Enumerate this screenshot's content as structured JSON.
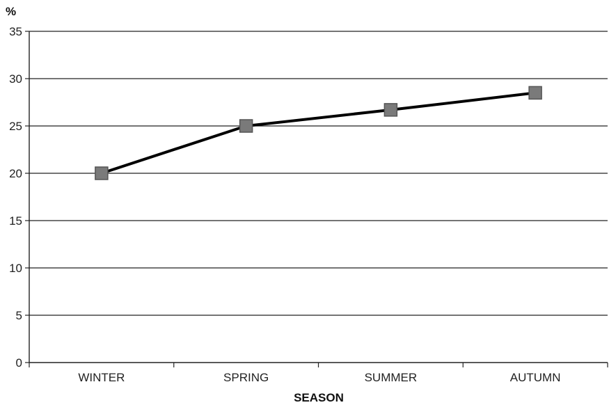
{
  "chart_data": {
    "type": "line",
    "title": "",
    "xlabel": "SEASON",
    "ylabel": "%",
    "categories": [
      "WINTER",
      "SPRING",
      "SUMMER",
      "AUTUMN"
    ],
    "series": [
      {
        "values": [
          20,
          25,
          26.7,
          28.5
        ]
      }
    ],
    "ylim": [
      0,
      35
    ],
    "yticks": [
      0,
      5,
      10,
      15,
      20,
      25,
      30,
      35
    ],
    "grid": true,
    "legend": "none",
    "colors": {
      "line": "#000000",
      "marker": "#7a7a7a",
      "marker_border": "#555555",
      "grid": "#222222"
    }
  }
}
